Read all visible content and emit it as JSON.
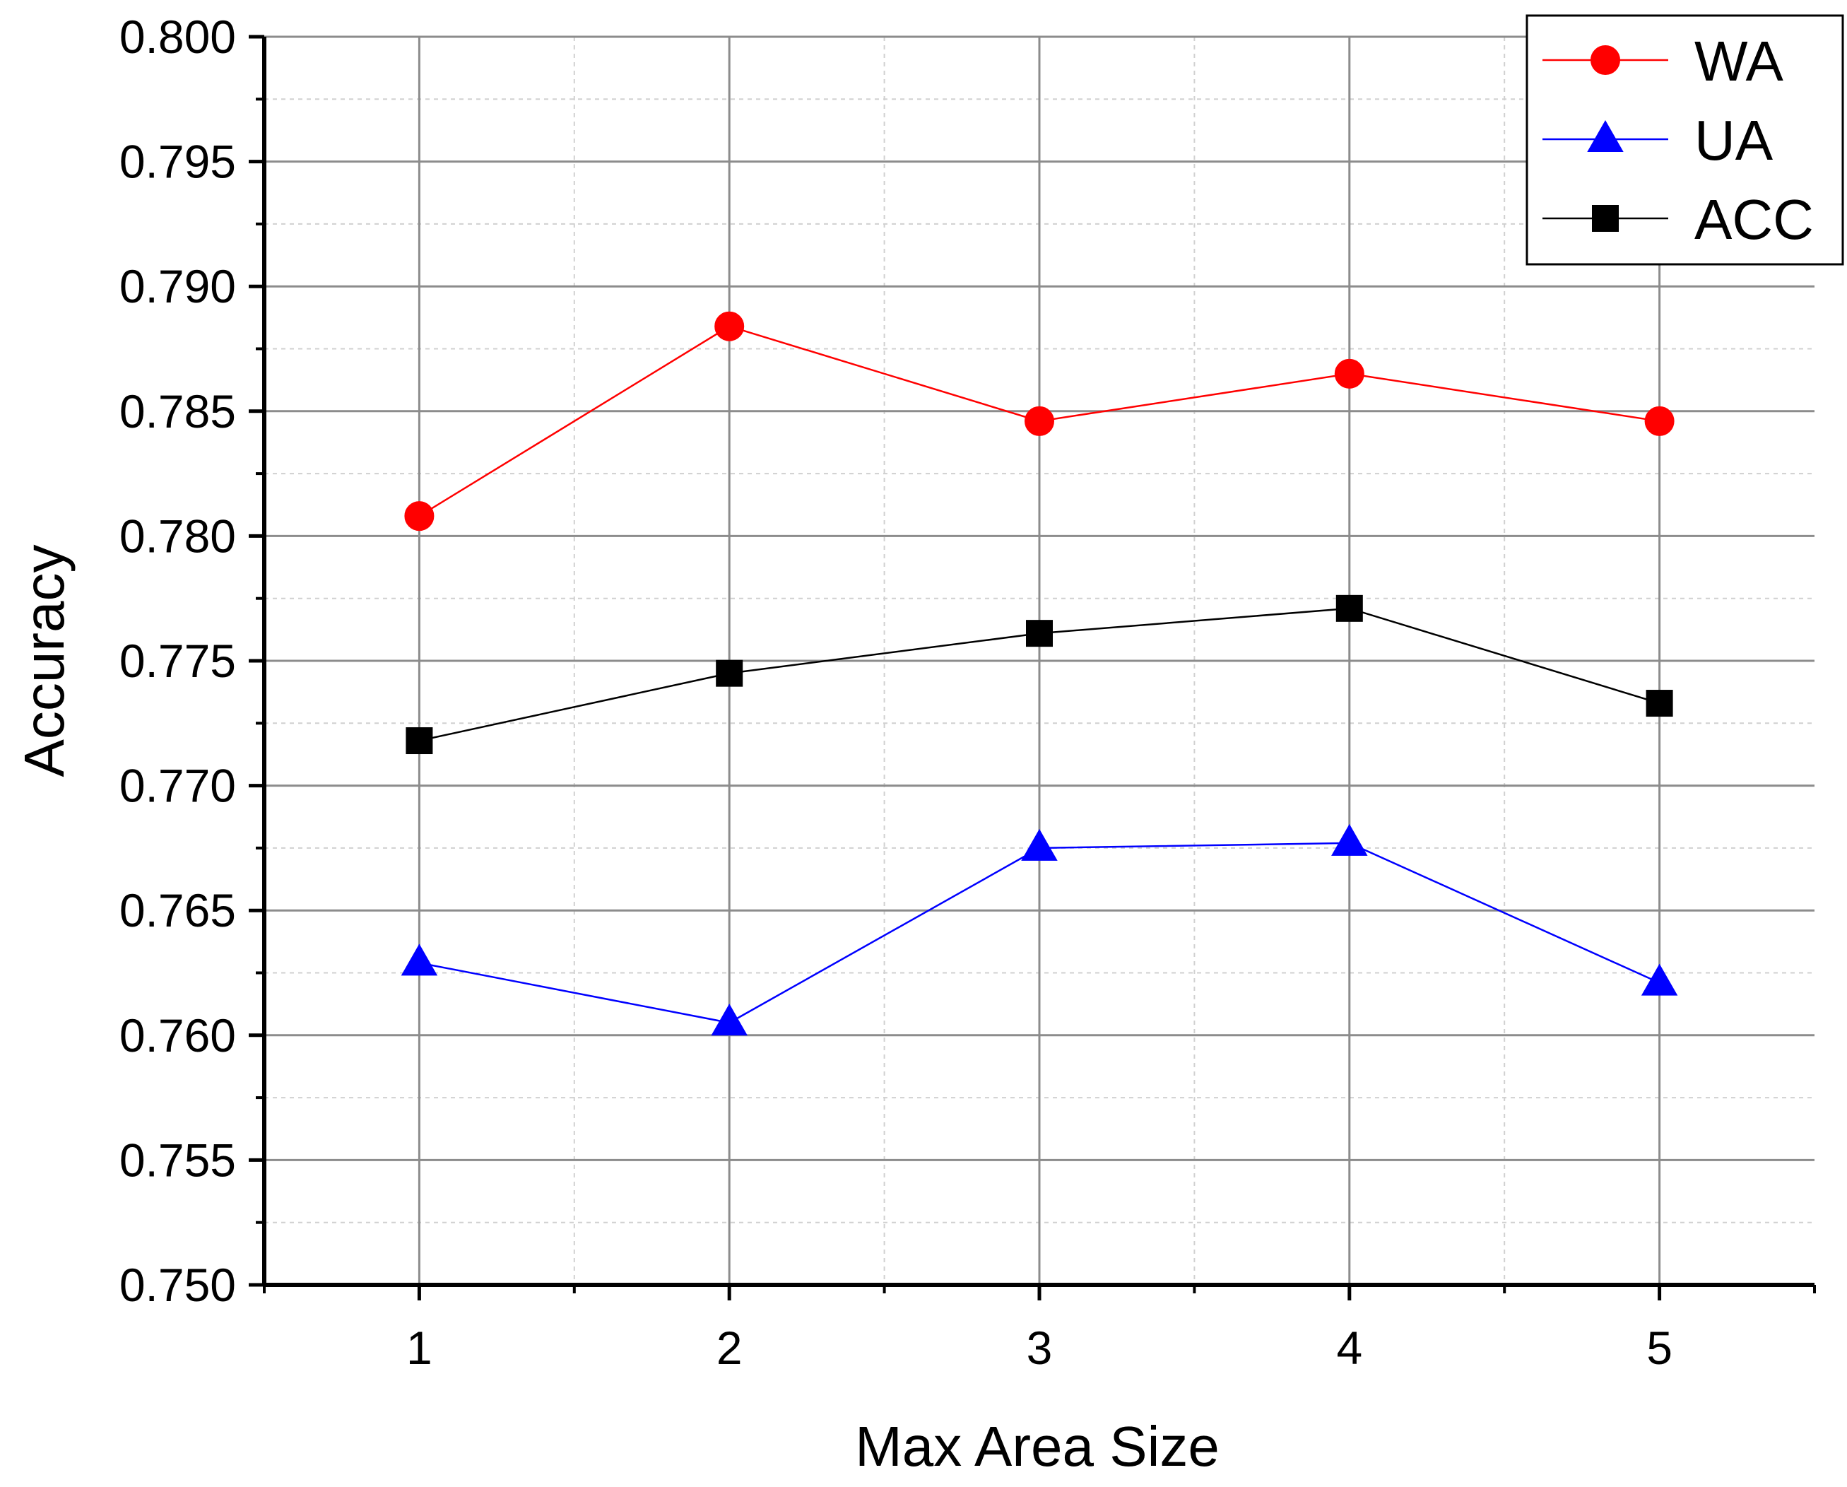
{
  "chart_data": {
    "type": "line",
    "title": "",
    "xlabel": "Max Area Size",
    "ylabel": "Accuracy",
    "x": [
      1,
      2,
      3,
      4,
      5
    ],
    "x_tick_labels": [
      "1",
      "2",
      "3",
      "4",
      "5"
    ],
    "xlim": [
      0.5,
      5.5
    ],
    "ylim": [
      0.75,
      0.8
    ],
    "y_ticks": [
      0.75,
      0.755,
      0.76,
      0.765,
      0.77,
      0.775,
      0.78,
      0.785,
      0.79,
      0.795,
      0.8
    ],
    "y_tick_labels": [
      "0.750",
      "0.755",
      "0.760",
      "0.765",
      "0.770",
      "0.775",
      "0.780",
      "0.785",
      "0.790",
      "0.795",
      "0.800"
    ],
    "grid": true,
    "legend_position": "top-right",
    "series": [
      {
        "name": "WA",
        "color": "#ff0000",
        "marker": "circle",
        "values": [
          0.7808,
          0.7884,
          0.7846,
          0.7865,
          0.7846
        ]
      },
      {
        "name": "UA",
        "color": "#0000ff",
        "marker": "triangle",
        "values": [
          0.7629,
          0.7605,
          0.7675,
          0.7677,
          0.7621
        ]
      },
      {
        "name": "ACC",
        "color": "#000000",
        "marker": "square",
        "values": [
          0.7718,
          0.7745,
          0.7761,
          0.7771,
          0.7733
        ]
      }
    ]
  }
}
